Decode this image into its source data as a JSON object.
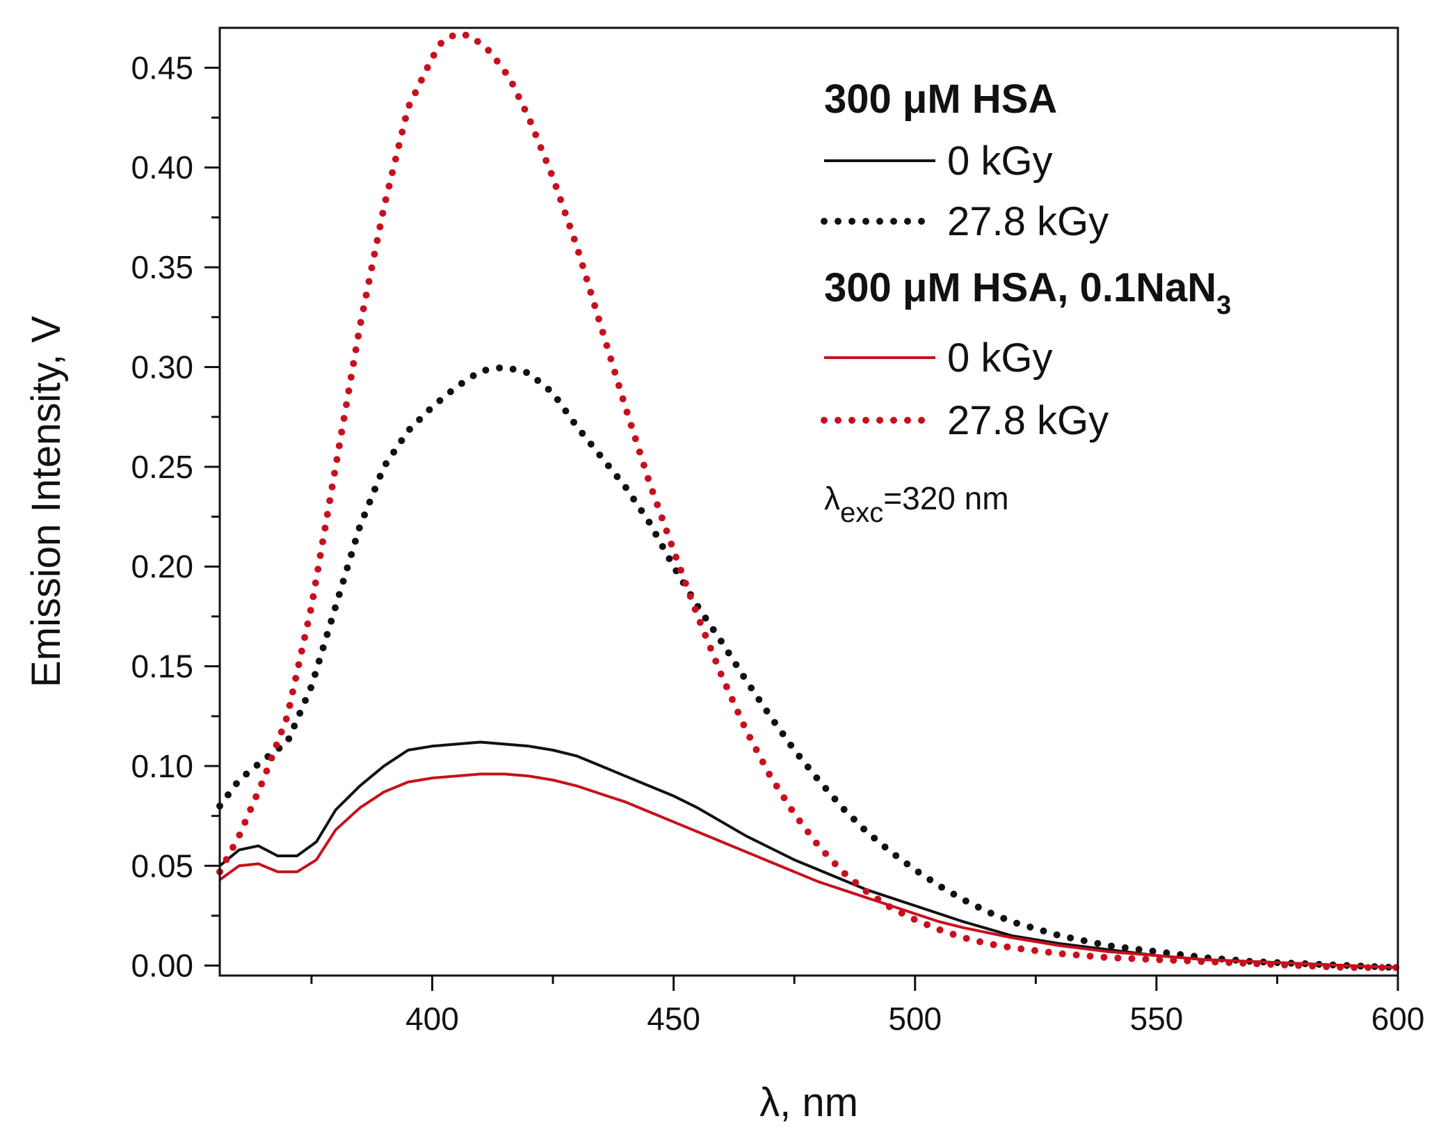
{
  "chart_data": {
    "type": "line",
    "xlabel": "λ, nm",
    "ylabel": "Emission Intensity, V",
    "xlim": [
      356,
      600
    ],
    "ylim": [
      -0.005,
      0.47
    ],
    "xticks": [
      400,
      450,
      500,
      550,
      600
    ],
    "xtick_labels": [
      "400",
      "450",
      "500",
      "550",
      "600"
    ],
    "xminor_step": 25,
    "yticks": [
      0.0,
      0.05,
      0.1,
      0.15,
      0.2,
      0.25,
      0.3,
      0.35,
      0.4,
      0.45
    ],
    "ytick_labels": [
      "0.00",
      "0.05",
      "0.10",
      "0.15",
      "0.20",
      "0.25",
      "0.30",
      "0.35",
      "0.40",
      "0.45"
    ],
    "yminor_step": 0.025,
    "legend": {
      "position": "top-right",
      "group1_title": "300 μM HSA",
      "group2_title_main": "300 μM HSA, 0.1NaN",
      "group2_title_sub": "3",
      "annotation_main": "λ",
      "annotation_sub": "exc",
      "annotation_rest": "=320 nm"
    },
    "series": [
      {
        "name": "0 kGy",
        "group": "300 μM HSA",
        "color": "#111111",
        "style": "solid",
        "x": [
          356,
          360,
          364,
          368,
          372,
          376,
          380,
          385,
          390,
          395,
          400,
          405,
          410,
          415,
          420,
          425,
          430,
          435,
          440,
          445,
          450,
          455,
          460,
          465,
          470,
          475,
          480,
          485,
          490,
          495,
          500,
          505,
          510,
          520,
          530,
          540,
          550,
          560,
          570,
          580,
          590,
          600
        ],
        "y": [
          0.05,
          0.058,
          0.06,
          0.055,
          0.055,
          0.062,
          0.078,
          0.09,
          0.1,
          0.108,
          0.11,
          0.111,
          0.112,
          0.111,
          0.11,
          0.108,
          0.105,
          0.1,
          0.095,
          0.09,
          0.085,
          0.079,
          0.072,
          0.065,
          0.059,
          0.053,
          0.048,
          0.043,
          0.038,
          0.034,
          0.03,
          0.026,
          0.022,
          0.015,
          0.011,
          0.008,
          0.005,
          0.003,
          0.002,
          0.001,
          0.0,
          -0.001
        ]
      },
      {
        "name": "27.8 kGy",
        "group": "300 μM HSA",
        "color": "#111111",
        "style": "dotted",
        "x": [
          356,
          360,
          365,
          370,
          375,
          380,
          385,
          390,
          395,
          400,
          405,
          410,
          415,
          420,
          425,
          430,
          435,
          440,
          445,
          450,
          455,
          460,
          465,
          470,
          475,
          480,
          485,
          490,
          495,
          500,
          505,
          510,
          515,
          520,
          530,
          540,
          550,
          560,
          570,
          580,
          590,
          600
        ],
        "y": [
          0.08,
          0.093,
          0.103,
          0.112,
          0.14,
          0.18,
          0.22,
          0.25,
          0.268,
          0.28,
          0.29,
          0.298,
          0.3,
          0.297,
          0.287,
          0.27,
          0.255,
          0.24,
          0.222,
          0.2,
          0.18,
          0.162,
          0.143,
          0.125,
          0.108,
          0.093,
          0.079,
          0.067,
          0.057,
          0.048,
          0.04,
          0.033,
          0.027,
          0.022,
          0.015,
          0.01,
          0.007,
          0.004,
          0.002,
          0.001,
          0.0,
          -0.001
        ]
      },
      {
        "name": "0 kGy",
        "group": "300 μM HSA, 0.1NaN3",
        "color": "#c8101c",
        "style": "solid",
        "x": [
          356,
          360,
          364,
          368,
          372,
          376,
          380,
          385,
          390,
          395,
          400,
          405,
          410,
          415,
          420,
          425,
          430,
          435,
          440,
          445,
          450,
          455,
          460,
          465,
          470,
          475,
          480,
          485,
          490,
          495,
          500,
          505,
          510,
          520,
          530,
          540,
          550,
          560,
          570,
          580,
          590,
          600
        ],
        "y": [
          0.043,
          0.05,
          0.051,
          0.047,
          0.047,
          0.053,
          0.068,
          0.079,
          0.087,
          0.092,
          0.094,
          0.095,
          0.096,
          0.096,
          0.095,
          0.093,
          0.09,
          0.086,
          0.082,
          0.077,
          0.072,
          0.067,
          0.062,
          0.057,
          0.052,
          0.047,
          0.042,
          0.038,
          0.034,
          0.03,
          0.026,
          0.022,
          0.019,
          0.014,
          0.01,
          0.007,
          0.005,
          0.003,
          0.002,
          0.001,
          0.0,
          -0.001
        ]
      },
      {
        "name": "27.8 kGy",
        "group": "300 μM HSA, 0.1NaN3",
        "color": "#c8101c",
        "style": "dotted",
        "x": [
          356,
          360,
          365,
          370,
          375,
          380,
          385,
          390,
          395,
          400,
          402,
          405,
          408,
          412,
          416,
          420,
          425,
          430,
          435,
          440,
          445,
          450,
          455,
          460,
          465,
          470,
          475,
          480,
          485,
          490,
          495,
          500,
          505,
          510,
          515,
          520,
          530,
          540,
          550,
          560,
          570,
          580,
          590,
          600
        ],
        "y": [
          0.047,
          0.065,
          0.093,
          0.125,
          0.18,
          0.25,
          0.32,
          0.38,
          0.43,
          0.455,
          0.463,
          0.467,
          0.466,
          0.458,
          0.445,
          0.425,
          0.395,
          0.36,
          0.32,
          0.28,
          0.242,
          0.208,
          0.175,
          0.145,
          0.118,
          0.095,
          0.076,
          0.06,
          0.047,
          0.037,
          0.029,
          0.023,
          0.018,
          0.014,
          0.011,
          0.009,
          0.006,
          0.004,
          0.003,
          0.002,
          0.001,
          0.0,
          -0.001,
          -0.001
        ]
      }
    ]
  }
}
